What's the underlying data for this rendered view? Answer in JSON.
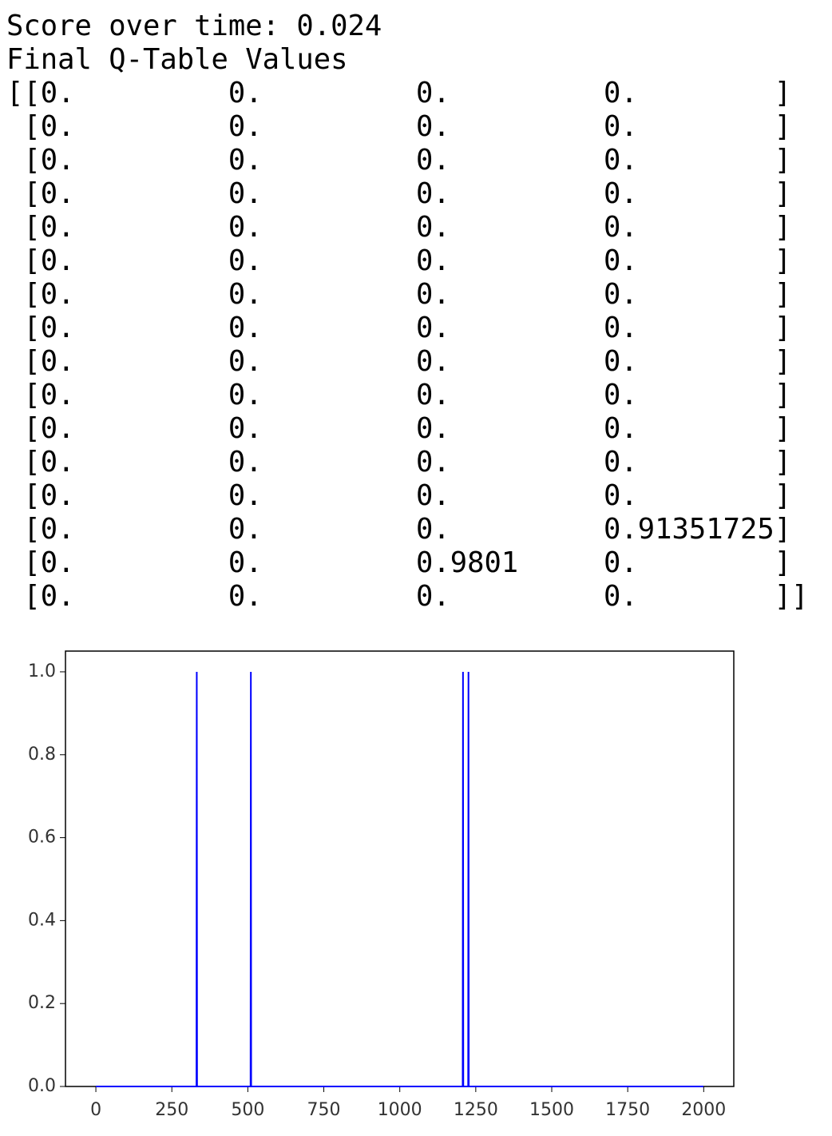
{
  "text_output": {
    "lines": [
      "Score over time: 0.024",
      "Final Q-Table Values",
      "[[0.         0.         0.         0.        ]",
      " [0.         0.         0.         0.        ]",
      " [0.         0.         0.         0.        ]",
      " [0.         0.         0.         0.        ]",
      " [0.         0.         0.         0.        ]",
      " [0.         0.         0.         0.        ]",
      " [0.         0.         0.         0.        ]",
      " [0.         0.         0.         0.        ]",
      " [0.         0.         0.         0.        ]",
      " [0.         0.         0.         0.        ]",
      " [0.         0.         0.         0.        ]",
      " [0.         0.         0.         0.        ]",
      " [0.         0.         0.         0.        ]",
      " [0.         0.         0.         0.91351725]",
      " [0.         0.         0.9801     0.        ]",
      " [0.         0.         0.         0.        ]]"
    ]
  },
  "chart_data": {
    "type": "line",
    "x": [
      0,
      331,
      332,
      333,
      509,
      510,
      511,
      1207,
      1208,
      1209,
      1225,
      1226,
      1227,
      1999
    ],
    "series": [
      {
        "color": "#0000ff",
        "values": [
          0,
          0,
          1,
          0,
          0,
          1,
          0,
          0,
          1,
          0,
          0,
          1,
          0,
          0
        ]
      }
    ],
    "xlim": [
      -100,
      2099
    ],
    "ylim": [
      0,
      1.05
    ],
    "xticks": [
      0,
      250,
      500,
      750,
      1000,
      1250,
      1500,
      1750,
      2000
    ],
    "yticks": [
      {
        "value": 0,
        "label": "0.0"
      },
      0.2,
      0.4,
      0.6,
      0.8,
      {
        "value": 1,
        "label": "1.0"
      }
    ]
  }
}
